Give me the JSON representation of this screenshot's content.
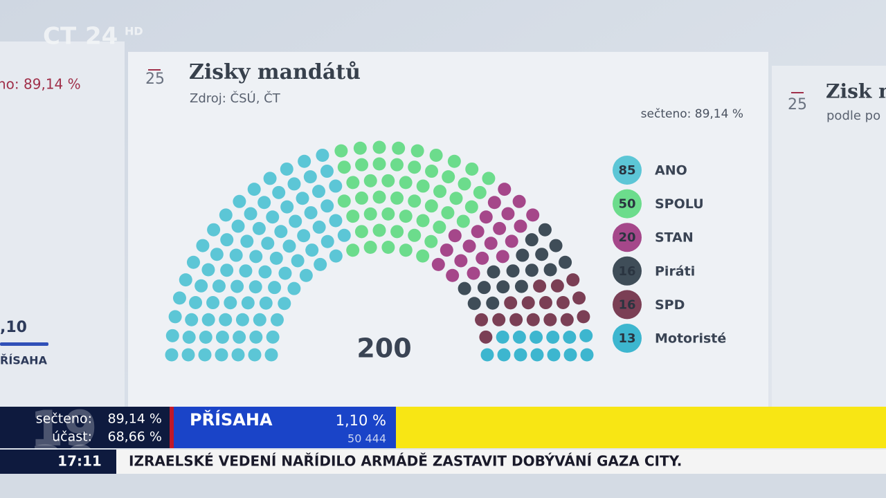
{
  "chart_data": {
    "type": "parliament",
    "title": "Zisky mandátů",
    "subtitle": "Zdroj: ČSÚ, ČT",
    "badge": "25",
    "annotation": "sečteno: 89,14 %",
    "total": 200,
    "series": [
      {
        "name": "ANO",
        "color": "#5cc6d6",
        "value": 85
      },
      {
        "name": "SPOLU",
        "color": "#6cdc8c",
        "value": 50
      },
      {
        "name": "STAN",
        "color": "#a5478a",
        "value": 20
      },
      {
        "name": "Piráti",
        "color": "#3f4d58",
        "value": 16
      },
      {
        "name": "SPD",
        "color": "#7b3f55",
        "value": 16
      },
      {
        "name": "Motoristé",
        "color": "#3db6cf",
        "value": 13
      }
    ]
  },
  "logo": {
    "channel": "CT",
    "number": "24",
    "quality": "HD"
  },
  "left_panel": {
    "counted": "no: 89,14 %",
    "value": ",10",
    "party": "ŘÍSAHA"
  },
  "right_panel": {
    "badge": "25",
    "title": "Zisk m",
    "subtitle": "podle po"
  },
  "lower_third": {
    "counted_label": "sečteno:",
    "counted_value": "89,14 %",
    "turnout_label": "účast:",
    "turnout_value": "68,66 %",
    "party": "PŘÍSAHA",
    "percent": "1,10 %",
    "votes": "50 444",
    "time": "17:11",
    "headline": "IZRAELSKÉ VEDENÍ NAŘÍDILO ARMÁDĚ ZASTAVIT DOBÝVÁNÍ GAZA CITY.",
    "watermark_top": "19",
    "watermark_bottom": "30"
  }
}
